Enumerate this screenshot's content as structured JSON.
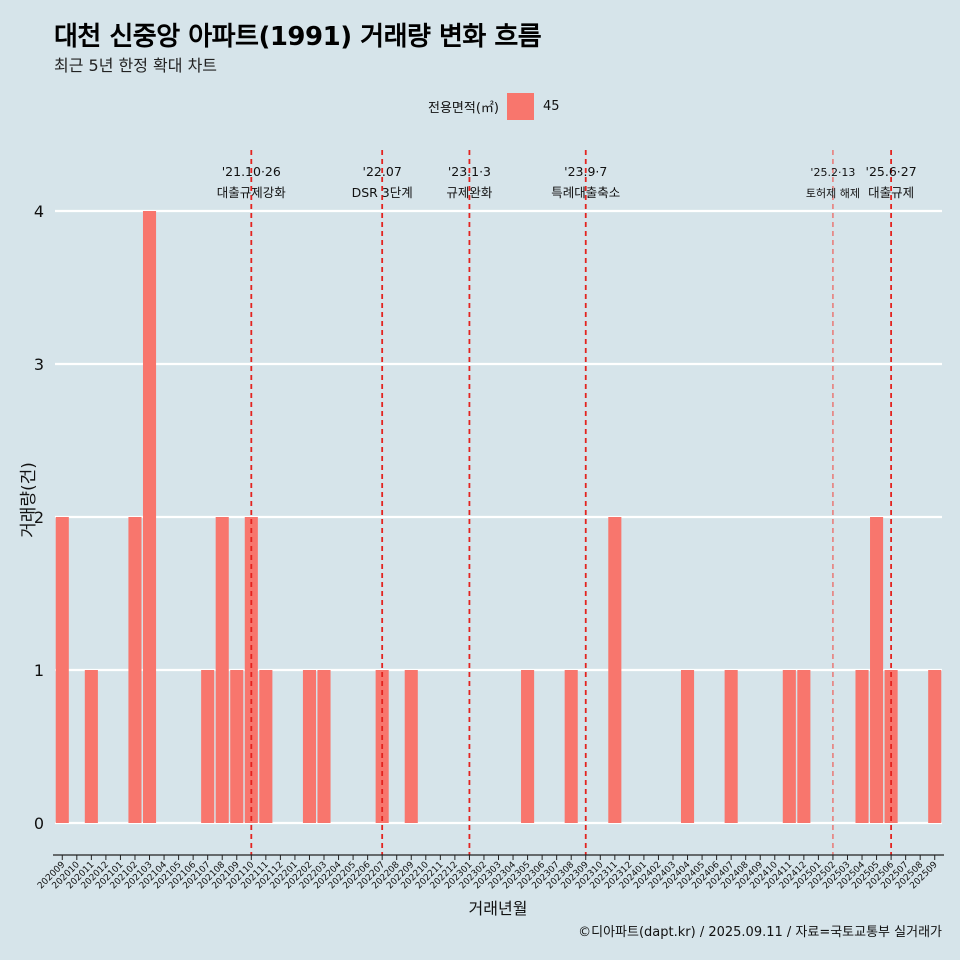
{
  "header": {
    "title": "대천 신중앙 아파트(1991) 거래량 변화 흐름",
    "subtitle": "최근 5년 한정 확대 차트"
  },
  "legend": {
    "label": "전용면적(㎡)",
    "item": "45",
    "color": "#f8766d"
  },
  "footer": {
    "caption": "©디아파트(dapt.kr) / 2025.09.11 / 자료=국토교통부 실거래가"
  },
  "chart_data": {
    "type": "bar",
    "xlabel": "거래년월",
    "ylabel": "거래량(건)",
    "ylim": [
      0,
      4
    ],
    "yticks": [
      0,
      1,
      2,
      3,
      4
    ],
    "legend_placement": "top",
    "grid": true,
    "categories": [
      "202009",
      "202010",
      "202011",
      "202012",
      "202101",
      "202102",
      "202103",
      "202104",
      "202105",
      "202106",
      "202107",
      "202108",
      "202109",
      "202110",
      "202111",
      "202112",
      "202201",
      "202202",
      "202203",
      "202204",
      "202205",
      "202206",
      "202207",
      "202208",
      "202209",
      "202210",
      "202211",
      "202212",
      "202301",
      "202302",
      "202303",
      "202304",
      "202305",
      "202306",
      "202307",
      "202308",
      "202309",
      "202310",
      "202311",
      "202312",
      "202401",
      "202402",
      "202403",
      "202404",
      "202405",
      "202406",
      "202407",
      "202408",
      "202409",
      "202410",
      "202411",
      "202412",
      "202501",
      "202502",
      "202503",
      "202504",
      "202505",
      "202506",
      "202507",
      "202508",
      "202509"
    ],
    "series": [
      {
        "name": "45",
        "color": "#f8766d",
        "values": [
          2,
          0,
          1,
          0,
          0,
          2,
          4,
          0,
          0,
          0,
          1,
          2,
          1,
          2,
          1,
          0,
          0,
          1,
          1,
          0,
          0,
          0,
          1,
          0,
          1,
          0,
          0,
          0,
          0,
          0,
          0,
          0,
          1,
          0,
          0,
          1,
          0,
          0,
          2,
          0,
          0,
          0,
          0,
          1,
          0,
          0,
          1,
          0,
          0,
          0,
          1,
          1,
          0,
          0,
          0,
          1,
          2,
          1,
          0,
          0,
          1
        ]
      }
    ],
    "events": [
      {
        "date": "202110",
        "date_label": "'21.10·26",
        "label": "대출규제강화",
        "style": "bold"
      },
      {
        "date": "202207",
        "date_label": "'22.07",
        "label": "DSR 3단계",
        "style": "bold"
      },
      {
        "date": "202301",
        "date_label": "'23.1·3",
        "label": "규제완화",
        "style": "bold"
      },
      {
        "date": "202309",
        "date_label": "'23.9·7",
        "label": "특례대출축소",
        "style": "bold"
      },
      {
        "date": "202502",
        "date_label": "'25.2·13",
        "label": "토허제 해제",
        "style": "thin"
      },
      {
        "date": "202506",
        "date_label": "'25.6·27",
        "label": "대출규제",
        "style": "bold"
      }
    ]
  }
}
